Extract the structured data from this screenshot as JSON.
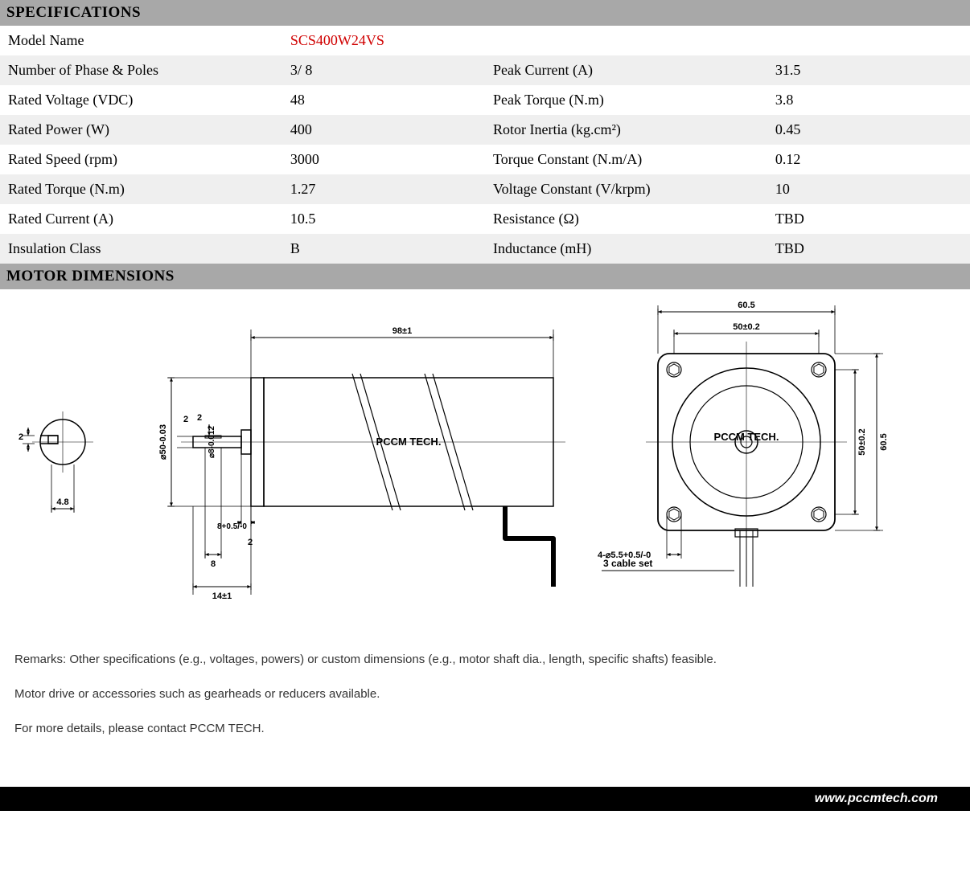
{
  "sections": {
    "specs_title": "SPECIFICATIONS",
    "dims_title": "MOTOR DIMENSIONS"
  },
  "spec_rows": [
    {
      "l1": "Model Name",
      "v1": "SCS400W24VS",
      "v1_class": "model-val",
      "l2": "",
      "v2": ""
    },
    {
      "l1": "Number of Phase & Poles",
      "v1": "3/ 8",
      "l2": "Peak Current (A)",
      "v2": "31.5"
    },
    {
      "l1": "Rated Voltage (VDC)",
      "v1": "48",
      "l2": "Peak Torque (N.m)",
      "v2": "3.8"
    },
    {
      "l1": "Rated Power (W)",
      "v1": "400",
      "l2": "Rotor Inertia (kg.cm²)",
      "v2": "0.45"
    },
    {
      "l1": "Rated Speed (rpm)",
      "v1": "3000",
      "l2": "Torque Constant (N.m/A)",
      "v2": "0.12"
    },
    {
      "l1": "Rated Torque (N.m)",
      "v1": "1.27",
      "l2": "Voltage Constant (V/krpm)",
      "v2": "10"
    },
    {
      "l1": "Rated Current (A)",
      "v1": "10.5",
      "l2": "Resistance (Ω)",
      "v2": "TBD"
    },
    {
      "l1": "Insulation Class",
      "v1": "B",
      "l2": "Inductance (mH)",
      "v2": "TBD"
    }
  ],
  "drawing": {
    "watermark": "PCCM TECH.",
    "side": {
      "body_length_label": "98±1",
      "shaft_ext_label": "14±1",
      "shaft_dia_label": "⌀8-0.012",
      "body_dia_label": "⌀50-0.03",
      "flat_depth_label": "2",
      "flat_len_label": "8",
      "step_label": "8+0.5/-0",
      "step_gap_label": "2",
      "shaft_tip_label": "2"
    },
    "shaft_end": {
      "flat_width_label": "4.8",
      "key_height_label": "2"
    },
    "front": {
      "outer_label": "60.5",
      "bolt_pitch_label": "50±0.2",
      "hole_label": "4-⌀5.5+0.5/-0",
      "cable_label": "3 cable set"
    },
    "stroke": "#000000",
    "thin_stroke": 1,
    "med_stroke": 1.5,
    "font": "11px Arial",
    "font_bold": "bold 11px Arial"
  },
  "remarks": [
    "Remarks: Other specifications (e.g., voltages, powers) or custom dimensions (e.g., motor shaft dia., length, specific shafts) feasible.",
    "Motor drive or accessories such as gearheads or reducers available.",
    "For more details, please contact PCCM TECH."
  ],
  "footer": "www.pccmtech.com"
}
